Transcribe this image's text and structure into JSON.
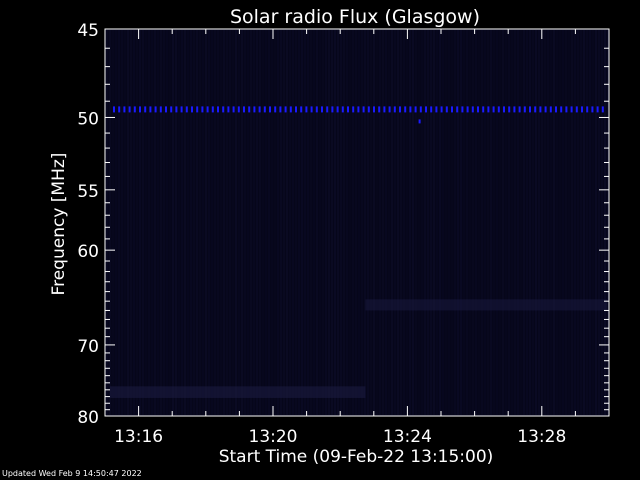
{
  "chart_data": {
    "type": "heatmap",
    "title": "Solar radio Flux (Glasgow)",
    "xlabel": "Start Time (09-Feb-22 13:15:00)",
    "ylabel": "Frequency [MHz]",
    "x_ticks": [
      "13:16",
      "13:20",
      "13:24",
      "13:28"
    ],
    "y_ticks": [
      45,
      50,
      55,
      60,
      70,
      80
    ],
    "xlim": [
      "13:15:00",
      "13:30:00"
    ],
    "ylim": [
      45,
      80
    ],
    "y_scale": "reciprocal",
    "grid": false,
    "colors": {
      "background": "#000000",
      "plot_bg": "#06061a",
      "interference_band": "#1a1aff",
      "faint_band": "#1a1a40",
      "axis": "#ffffff"
    },
    "features": [
      {
        "label": "interference",
        "freq_mhz": 49.5,
        "start": "13:15:00",
        "end": "13:30:00"
      }
    ]
  },
  "footer": "Updated Wed Feb  9 14:50:47 2022"
}
